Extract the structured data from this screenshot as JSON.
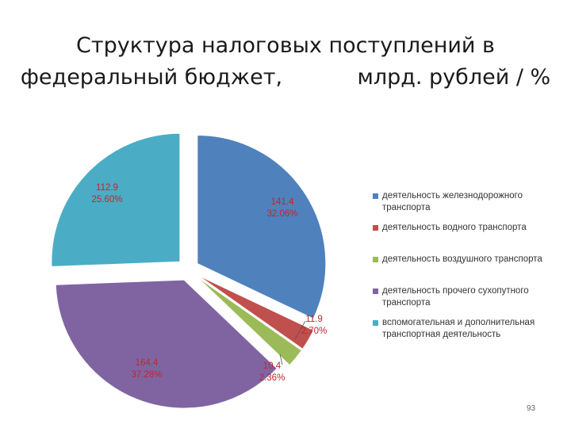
{
  "title": {
    "line1": "Структура налоговых поступлений в",
    "line2": "федеральный бюджет,           млрд. рублей / %"
  },
  "chart_data": {
    "type": "pie",
    "exploded": true,
    "slices": [
      {
        "name": "деятельность железнодорожного транспорта",
        "value": 141.4,
        "percent": "32.06%",
        "color": "#4f81bd"
      },
      {
        "name": "деятельность водного транспорта",
        "value": 11.9,
        "percent": "2.70%",
        "color": "#c0504d"
      },
      {
        "name": "деятельность воздушного транспорта",
        "value": 10.4,
        "percent": "2.36%",
        "color": "#9bbb59"
      },
      {
        "name": "деятельность прочего сухопутного транспорта",
        "value": 164.4,
        "percent": "37.28%",
        "color": "#8064a2"
      },
      {
        "name": "вспомогательная и дополнительная транспортная деятельность",
        "value": 112.9,
        "percent": "25.60%",
        "color": "#4bacc6"
      }
    ],
    "labels": [
      {
        "value": "141.4",
        "percent": "32.06%"
      },
      {
        "value": "11.9",
        "percent": "2.70%"
      },
      {
        "value": "10.4",
        "percent": "2.36%"
      },
      {
        "value": "164.4",
        "percent": "37.28%"
      },
      {
        "value": "112.9",
        "percent": "25.60%"
      }
    ],
    "legend": {
      "placement": "right",
      "items": [
        {
          "lines": [
            "деятельность железнодорожного",
            "транспорта"
          ],
          "color": "#4f81bd"
        },
        {
          "lines": [
            "деятельность водного транспорта"
          ],
          "color": "#c0504d"
        },
        {
          "lines": [
            "деятельность воздушного транспорта"
          ],
          "color": "#9bbb59"
        },
        {
          "lines": [
            "деятельность прочего сухопутного",
            "транспорта"
          ],
          "color": "#8064a2"
        },
        {
          "lines": [
            "вспомогательная и дополнительная",
            "транспортная деятельность"
          ],
          "color": "#4bacc6"
        }
      ]
    }
  },
  "page_number": "93"
}
